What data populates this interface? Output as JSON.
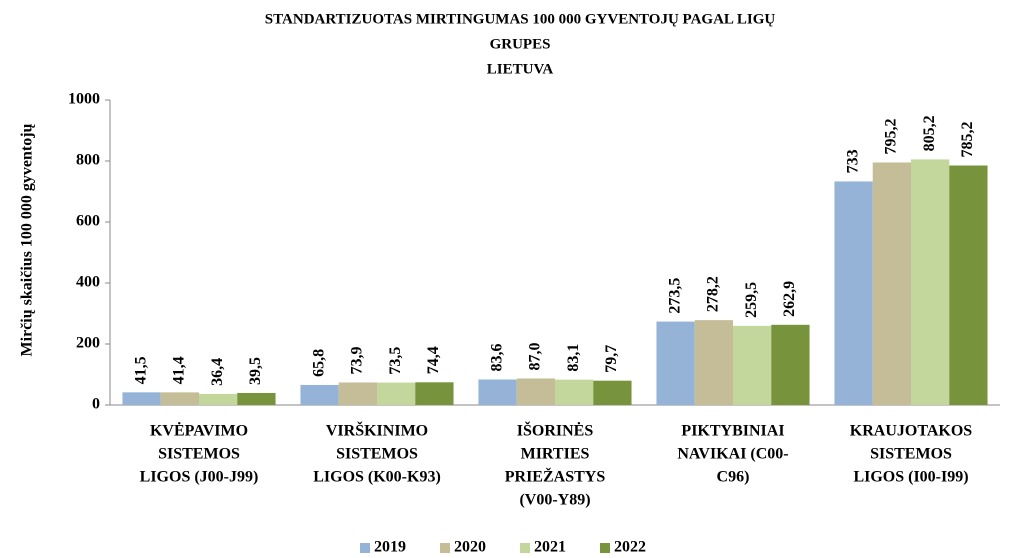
{
  "chart_data": {
    "type": "bar",
    "title": [
      "STANDARTIZUOTAS  MIRTINGUMAS  100 000 GYVENTOJŲ PAGAL LIGŲ",
      "GRUPES",
      "LIETUVA"
    ],
    "ylabel": "Mirčių  skaičius 100 000 gyventojų",
    "categories": [
      [
        "KVĖPAVIMO",
        "SISTEMOS",
        "LIGOS (J00-J99)"
      ],
      [
        "VIRŠKINIMO",
        "SISTEMOS",
        "LIGOS (K00-K93)"
      ],
      [
        "IŠORINĖS",
        "MIRTIES",
        "PRIEŽASTYS",
        "(V00-Y89)"
      ],
      [
        "PIKTYBINIAI",
        "NAVIKAI (C00-",
        "C96)"
      ],
      [
        "KRAUJOTAKOS",
        "SISTEMOS",
        "LIGOS (I00-I99)"
      ]
    ],
    "series": [
      {
        "name": "2019",
        "color": "#95b3d7",
        "values": [
          41.5,
          65.8,
          83.6,
          273.5,
          733
        ],
        "value_labels": [
          "41,5",
          "65,8",
          "83,6",
          "273,5",
          "733"
        ]
      },
      {
        "name": "2020",
        "color": "#c4bd97",
        "values": [
          41.4,
          73.9,
          87.0,
          278.2,
          795.2
        ],
        "value_labels": [
          "41,4",
          "73,9",
          "87,0",
          "278,2",
          "795,2"
        ]
      },
      {
        "name": "2021",
        "color": "#c3d69b",
        "values": [
          36.4,
          73.5,
          83.1,
          259.5,
          805.2
        ],
        "value_labels": [
          "36,4",
          "73,5",
          "83,1",
          "259,5",
          "805,2"
        ]
      },
      {
        "name": "2022",
        "color": "#77933c",
        "values": [
          39.5,
          74.4,
          79.7,
          262.9,
          785.2
        ],
        "value_labels": [
          "39,5",
          "74,4",
          "79,7",
          "262,9",
          "785,2"
        ]
      }
    ],
    "ylim": [
      0,
      1000
    ],
    "yticks": [
      0,
      200,
      400,
      600,
      800,
      1000
    ],
    "grid": false,
    "legend": "bottom"
  }
}
